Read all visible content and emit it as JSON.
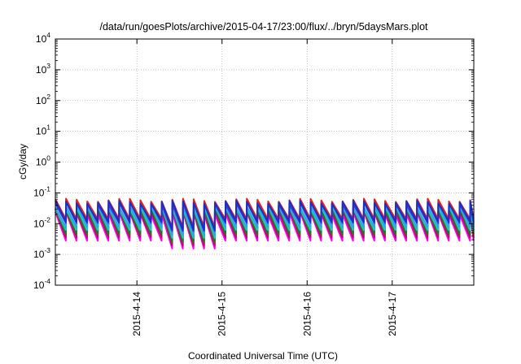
{
  "chart_data": {
    "type": "line",
    "title": "/data/run/goesPlots/archive/2015-04-17/23:00/flux/../bryn/5daysMars.plot",
    "xlabel": "Coordinated Universal Time (UTC)",
    "ylabel": "cGy/day",
    "y_scale": "log",
    "ylim": [
      0.0001,
      10000
    ],
    "y_ticks": [
      {
        "value": 0.0001,
        "base": "10",
        "exp": "-4"
      },
      {
        "value": 0.001,
        "base": "10",
        "exp": "-3"
      },
      {
        "value": 0.01,
        "base": "10",
        "exp": "-2"
      },
      {
        "value": 0.1,
        "base": "10",
        "exp": "-1"
      },
      {
        "value": 1,
        "base": "10",
        "exp": "0"
      },
      {
        "value": 10,
        "base": "10",
        "exp": "1"
      },
      {
        "value": 100,
        "base": "10",
        "exp": "2"
      },
      {
        "value": 1000,
        "base": "10",
        "exp": "3"
      },
      {
        "value": 10000,
        "base": "10",
        "exp": "4"
      }
    ],
    "xlim": [
      "2015-04-13 01:00",
      "2015-04-17 23:00"
    ],
    "x_ticks": [
      "2015-4-14",
      "2015-4-15",
      "2015-4-16",
      "2015-4-17"
    ],
    "grid": true,
    "legend": "none",
    "sawtooth": {
      "period_hours": 3,
      "start": "2015-04-13 01:00",
      "end": "2015-04-17 23:00",
      "gap": {
        "start": "2015-04-14 05:00",
        "end": "2015-04-14 20:00",
        "low_factor": 0.55
      }
    },
    "series": [
      {
        "color": "#ff00ff",
        "peak": 0.022,
        "trough": 0.0028
      },
      {
        "color": "#c8006e",
        "peak": 0.026,
        "trough": 0.0035
      },
      {
        "color": "#1e7a1e",
        "peak": 0.03,
        "trough": 0.0045
      },
      {
        "color": "#22c4c4",
        "peak": 0.034,
        "trough": 0.0062
      },
      {
        "color": "#2aa8e0",
        "peak": 0.038,
        "trough": 0.0078
      },
      {
        "color": "#3a3ad8",
        "peak": 0.047,
        "trough": 0.0105
      },
      {
        "color": "#e8201a",
        "peak": 0.058,
        "trough": 0.014
      },
      {
        "color": "#1a2fc8",
        "peak": 0.05,
        "trough": 0.0118
      }
    ]
  }
}
